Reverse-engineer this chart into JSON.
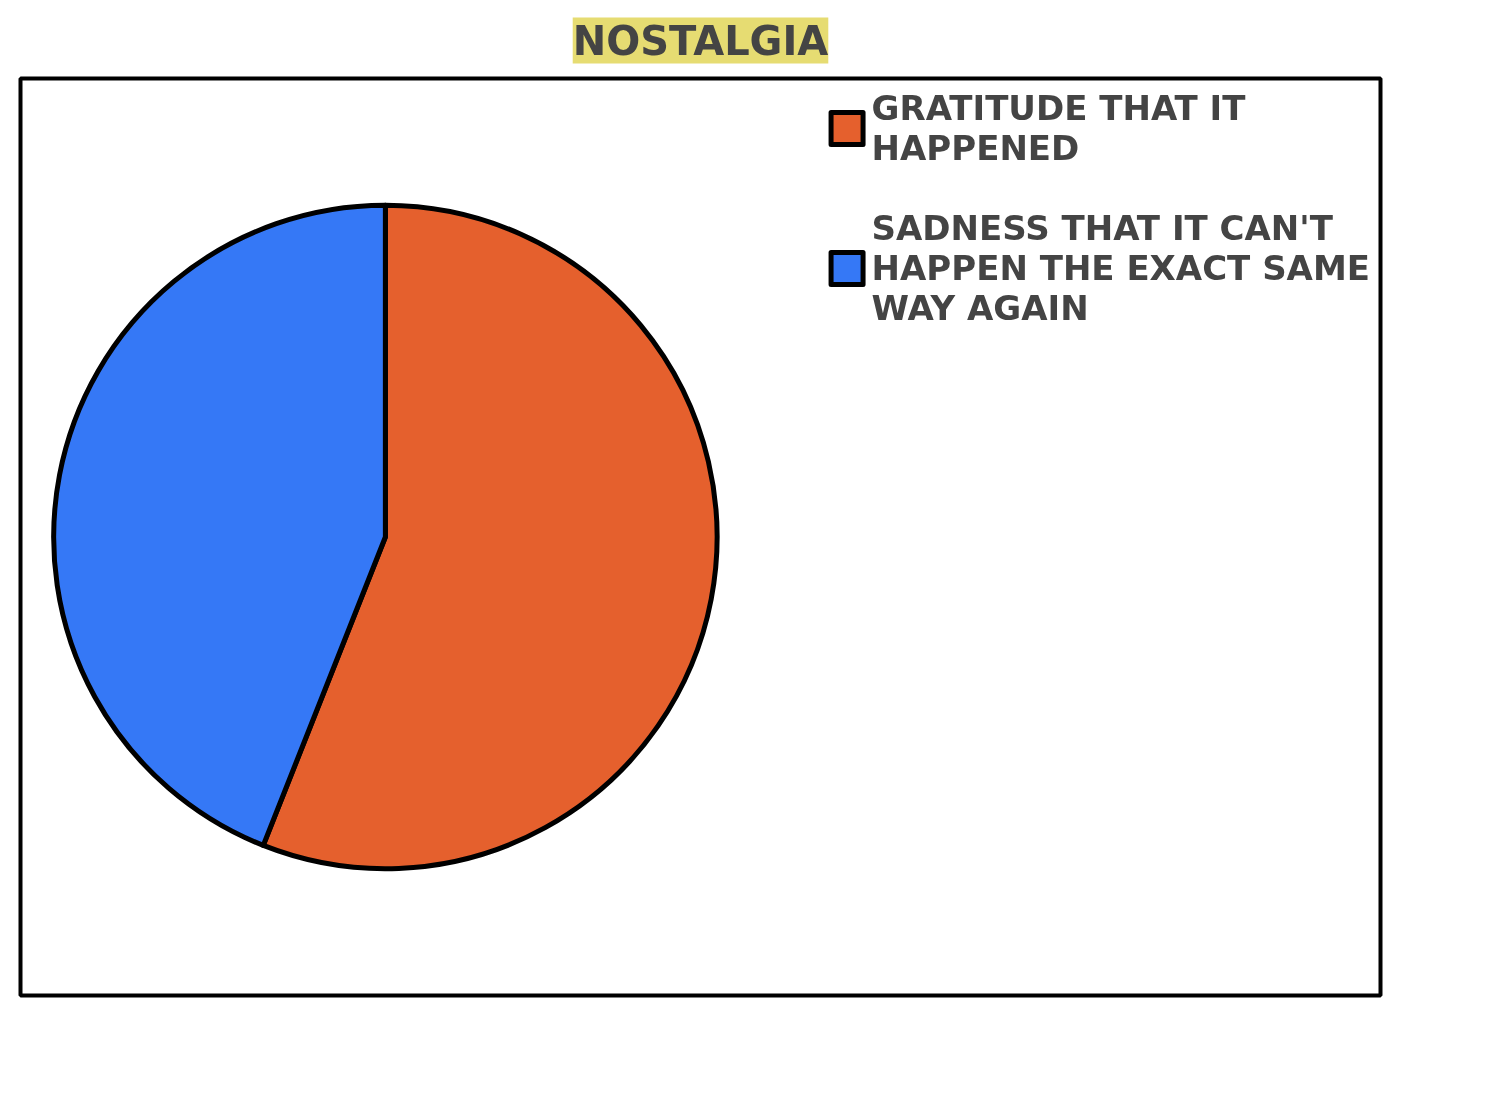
{
  "chart_data": {
    "type": "pie",
    "title": "NOSTALGIA",
    "categories": [
      "GRATITUDE THAT IT HAPPENED",
      "SADNESS THAT IT CAN'T HAPPEN THE EXACT SAME WAY AGAIN"
    ],
    "values": [
      56,
      44
    ],
    "colors": [
      "#e5602d",
      "#3578f6"
    ],
    "legend": "right"
  }
}
